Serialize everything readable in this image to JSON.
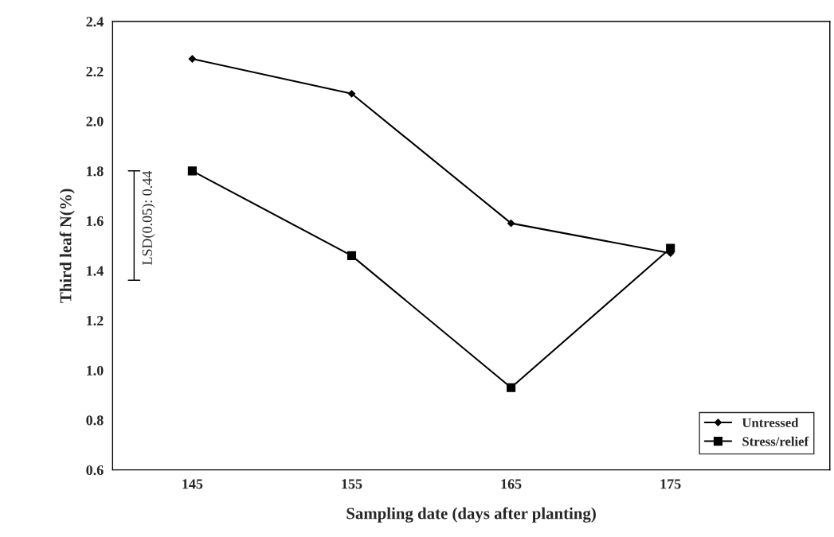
{
  "chart_data": {
    "type": "line",
    "xlabel": "Sampling date (days after planting)",
    "ylabel": "Third leaf N(%)",
    "x": [
      145,
      155,
      165,
      175
    ],
    "series": [
      {
        "name": "Untressed",
        "color": "#000000",
        "marker": "diamond",
        "values": [
          2.25,
          2.11,
          1.59,
          1.47
        ]
      },
      {
        "name": "Stress/relief",
        "color": "#000000",
        "marker": "square",
        "values": [
          1.8,
          1.46,
          0.93,
          1.49
        ]
      }
    ],
    "xlim": [
      140,
      185
    ],
    "xticks": [
      145,
      155,
      165,
      175
    ],
    "ylim": [
      0.6,
      2.4
    ],
    "yticks": [
      {
        "value": 0.6,
        "label": "0.6"
      },
      {
        "value": 0.8,
        "label": "0.8"
      },
      {
        "value": 1.0,
        "label": "1.0"
      },
      {
        "value": 1.2,
        "label": "1.2"
      },
      {
        "value": 1.4,
        "label": "1.4"
      },
      {
        "value": 1.6,
        "label": "1.6"
      },
      {
        "value": 1.8,
        "label": "1.8"
      },
      {
        "value": 2.0,
        "label": "2.0"
      },
      {
        "value": 2.2,
        "label": "2.2"
      },
      {
        "value": 2.4,
        "label": "2.4"
      }
    ],
    "annotations": [
      "LSD(0.05): 0.44"
    ],
    "legend": "bottom right",
    "grid": false,
    "line_style": "solid"
  }
}
